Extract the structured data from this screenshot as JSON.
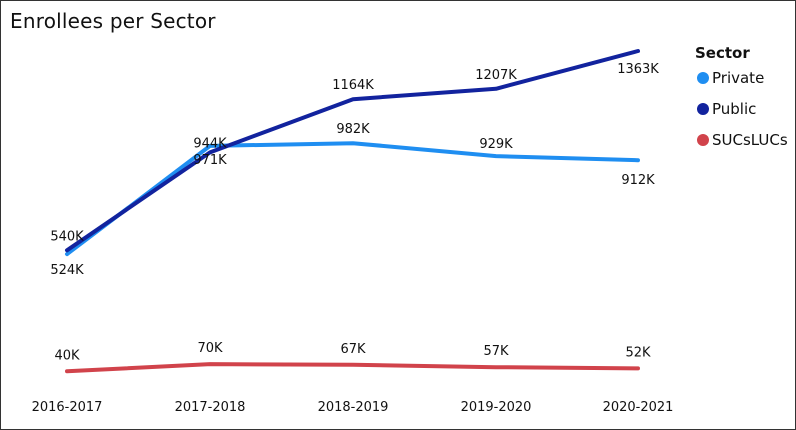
{
  "chart_data": {
    "type": "line",
    "title": "Enrollees per Sector",
    "categories": [
      "2016-2017",
      "2017-2018",
      "2018-2019",
      "2019-2020",
      "2020-2021"
    ],
    "legend": {
      "title": "Sector",
      "position": "right"
    },
    "grid": false,
    "ylim": [
      0,
      1400000
    ],
    "series": [
      {
        "name": "Private",
        "color": "#1f8ef1",
        "values": [
          524000,
          971000,
          982000,
          929000,
          912000
        ],
        "labels": [
          "524K",
          "971K",
          "982K",
          "929K",
          "912K"
        ]
      },
      {
        "name": "Public",
        "color": "#12239e",
        "values": [
          540000,
          944000,
          1164000,
          1207000,
          1363000
        ],
        "labels": [
          "540K",
          "944K",
          "1164K",
          "1207K",
          "1363K"
        ]
      },
      {
        "name": "SUCsLUCs",
        "color": "#d1434b",
        "values": [
          40000,
          70000,
          67000,
          57000,
          52000
        ],
        "labels": [
          "40K",
          "70K",
          "67K",
          "57K",
          "52K"
        ]
      }
    ]
  }
}
